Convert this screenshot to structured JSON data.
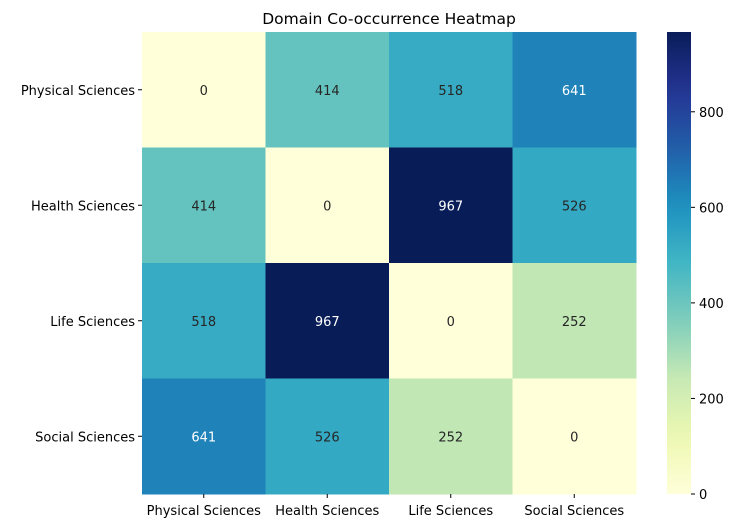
{
  "chart_data": {
    "type": "heatmap",
    "title": "Domain Co-occurrence Heatmap",
    "xlabel": "",
    "ylabel": "",
    "x_categories": [
      "Physical Sciences",
      "Health Sciences",
      "Life Sciences",
      "Social Sciences"
    ],
    "y_categories": [
      "Physical Sciences",
      "Health Sciences",
      "Life Sciences",
      "Social Sciences"
    ],
    "values": [
      [
        0,
        414,
        518,
        641
      ],
      [
        414,
        0,
        967,
        526
      ],
      [
        518,
        967,
        0,
        252
      ],
      [
        641,
        526,
        252,
        0
      ]
    ],
    "colormap": "YlGnBu",
    "vmin": 0,
    "vmax": 967,
    "annotations": true,
    "colorbar": {
      "ticks": [
        0,
        200,
        400,
        600,
        800
      ]
    }
  }
}
